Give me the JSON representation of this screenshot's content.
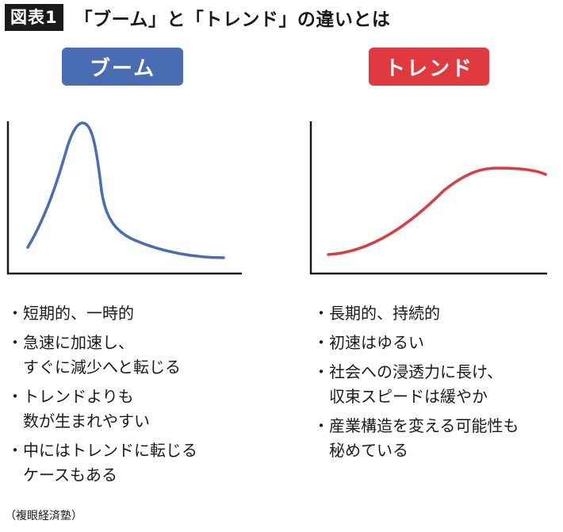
{
  "header": {
    "tag": "図表1",
    "title": "「ブーム」と「トレンド」の違いとは"
  },
  "boom": {
    "label": "ブーム",
    "color": "#4a6cb3",
    "points": [
      "短期的、一時的",
      "急速に加速し、\nすぐに減少へと転じる",
      "トレンドよりも\n数が生まれやすい",
      "中にはトレンドに転じる\nケースもある"
    ]
  },
  "trend": {
    "label": "トレンド",
    "color": "#e0393f",
    "points": [
      "長期的、持続的",
      "初速はゆるい",
      "社会への浸透力に長け、\n収束スピードは緩やか",
      "産業構造を変える可能性も\n秘めている"
    ]
  },
  "bullet": "・",
  "source": "（複眼経済塾）"
}
